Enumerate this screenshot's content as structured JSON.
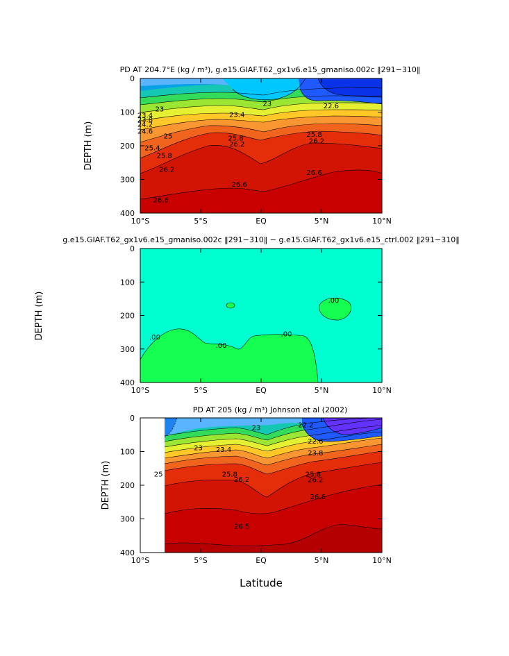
{
  "chart_data": [
    {
      "type": "contour",
      "title": "PD AT 204.7°E (kg / m³), g.e15.GIAF.T62_gx1v6.e15_gmaniso.002c ‖291−310‖",
      "ylabel": "DEPTH (m)",
      "xlabel": "",
      "xlim": [
        -10,
        10
      ],
      "ylim": [
        400,
        0
      ],
      "x_ticks": [
        "10°S",
        "5°S",
        "EQ",
        "5°N",
        "10°N"
      ],
      "y_ticks": [
        "0",
        "100",
        "200",
        "300",
        "400"
      ],
      "colors": [
        "#5ab4ff",
        "#00c8ff",
        "#1e5aff"
      ],
      "contour_labels": [
        {
          "text": "23",
          "lat": -8.4,
          "depth": 92
        },
        {
          "text": "23",
          "lat": 0.5,
          "depth": 75
        },
        {
          "text": "22.6",
          "lat": 5.8,
          "depth": 82
        },
        {
          "text": "23.4",
          "lat": -9.6,
          "depth": 110
        },
        {
          "text": "23.8",
          "lat": -9.6,
          "depth": 124
        },
        {
          "text": "24.2",
          "lat": -9.6,
          "depth": 137
        },
        {
          "text": "24.6",
          "lat": -9.6,
          "depth": 158
        },
        {
          "text": "25",
          "lat": -7.7,
          "depth": 172
        },
        {
          "text": "25.4",
          "lat": -9.0,
          "depth": 207
        },
        {
          "text": "25.8",
          "lat": -8.0,
          "depth": 230
        },
        {
          "text": "26.2",
          "lat": -7.8,
          "depth": 271
        },
        {
          "text": "26.6",
          "lat": -8.3,
          "depth": 362
        },
        {
          "text": "23.4",
          "lat": -2.0,
          "depth": 108
        },
        {
          "text": "25.8",
          "lat": -2.1,
          "depth": 178
        },
        {
          "text": "26.2",
          "lat": -2.0,
          "depth": 196
        },
        {
          "text": "26.6",
          "lat": -1.8,
          "depth": 315
        },
        {
          "text": "26.6",
          "lat": 4.4,
          "depth": 280
        },
        {
          "text": "25.8",
          "lat": 4.4,
          "depth": 167
        },
        {
          "text": "26.2",
          "lat": 4.6,
          "depth": 187
        }
      ]
    },
    {
      "type": "contour",
      "title": "g.e15.GIAF.T62_gx1v6.e15_gmaniso.002c ‖291−310‖ − g.e15.GIAF.T62_gx1v6.e15_ctrl.002 ‖291−310‖",
      "ylabel": "DEPTH (m)",
      "xlabel": "",
      "xlim": [
        -10,
        10
      ],
      "ylim": [
        400,
        0
      ],
      "x_ticks": [
        "10°S",
        "5°S",
        "EQ",
        "5°N",
        "10°N"
      ],
      "y_ticks": [
        "0",
        "100",
        "200",
        "300",
        "400"
      ],
      "colors": [
        "#00ffd0",
        "#14ff50"
      ],
      "contour_labels": [
        {
          "text": ".00",
          "lat": -8.8,
          "depth": 265
        },
        {
          "text": ".00",
          "lat": -3.3,
          "depth": 290
        },
        {
          "text": ".00",
          "lat": 2.1,
          "depth": 256
        },
        {
          "text": ".00",
          "lat": 6.0,
          "depth": 155
        }
      ]
    },
    {
      "type": "contour",
      "title": "PD AT 205 (kg / m³) Johnson et al (2002)",
      "ylabel": "DEPTH (m)",
      "xlabel": "Latitude",
      "xlim": [
        -10,
        10
      ],
      "ylim": [
        400,
        0
      ],
      "x_ticks": [
        "10°S",
        "5°S",
        "EQ",
        "5°N",
        "10°N"
      ],
      "y_ticks": [
        "0",
        "100",
        "200",
        "300",
        "400"
      ],
      "colors": [
        "#5ab4ff",
        "#1e5aff",
        "#6432ff"
      ],
      "contour_labels": [
        {
          "text": "23",
          "lat": -5.2,
          "depth": 90
        },
        {
          "text": "23",
          "lat": -0.4,
          "depth": 30
        },
        {
          "text": "22.2",
          "lat": 3.7,
          "depth": 22
        },
        {
          "text": "22.6",
          "lat": 4.5,
          "depth": 70
        },
        {
          "text": "23.4",
          "lat": -3.1,
          "depth": 95
        },
        {
          "text": "23.8",
          "lat": 4.5,
          "depth": 105
        },
        {
          "text": "25",
          "lat": -8.5,
          "depth": 168
        },
        {
          "text": "25.8",
          "lat": -2.6,
          "depth": 168
        },
        {
          "text": "26.2",
          "lat": -1.6,
          "depth": 183
        },
        {
          "text": "26.2",
          "lat": 4.5,
          "depth": 185
        },
        {
          "text": "25.8",
          "lat": 4.3,
          "depth": 168
        },
        {
          "text": "26.6",
          "lat": 4.7,
          "depth": 235
        },
        {
          "text": "26.5",
          "lat": -1.6,
          "depth": 323
        }
      ]
    }
  ]
}
